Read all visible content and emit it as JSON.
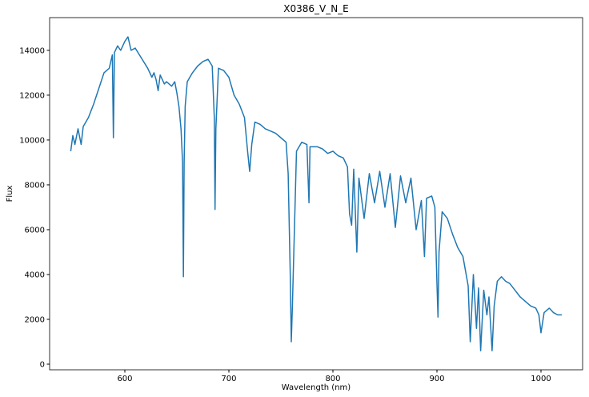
{
  "chart_data": {
    "type": "line",
    "title": "X0386_V_N_E",
    "x_label": "Wavelength (nm)",
    "y_label": "Flux",
    "color": "#1f77b4",
    "x": [
      548,
      550,
      552,
      555,
      558,
      560,
      565,
      570,
      575,
      580,
      585,
      588,
      589,
      590,
      593,
      596,
      600,
      603,
      606,
      610,
      614,
      618,
      622,
      626,
      628,
      630,
      632,
      634,
      638,
      640,
      645,
      648,
      650,
      652,
      654,
      655.5,
      656.3,
      657,
      658,
      660,
      665,
      670,
      675,
      680,
      684,
      686,
      686.7,
      687.5,
      690,
      695,
      700,
      705,
      710,
      715,
      718,
      720,
      722,
      725,
      730,
      735,
      740,
      745,
      750,
      755,
      757,
      759,
      760,
      761,
      763,
      765,
      770,
      775,
      777,
      778,
      785,
      790,
      795,
      800,
      805,
      810,
      814,
      816,
      818,
      820,
      823,
      825,
      830,
      835,
      840,
      845,
      850,
      855,
      860,
      865,
      870,
      875,
      880,
      885,
      888,
      890,
      895,
      898,
      900,
      901,
      902,
      905,
      910,
      915,
      920,
      925,
      930,
      932,
      935,
      938,
      940,
      942,
      945,
      948,
      950,
      953,
      955,
      958,
      962,
      966,
      970,
      975,
      980,
      985,
      990,
      995,
      998,
      1000,
      1003,
      1008,
      1012,
      1016,
      1020
    ],
    "values": [
      9500,
      10200,
      9800,
      10500,
      9800,
      10600,
      11000,
      11600,
      12300,
      13000,
      13200,
      13800,
      10100,
      13900,
      14200,
      14000,
      14400,
      14600,
      14000,
      14100,
      13800,
      13500,
      13200,
      12800,
      13000,
      12700,
      12200,
      12900,
      12500,
      12600,
      12400,
      12600,
      12100,
      11500,
      10500,
      9000,
      3900,
      9000,
      11500,
      12600,
      13000,
      13300,
      13500,
      13600,
      13300,
      11000,
      6900,
      10500,
      13200,
      13100,
      12800,
      12000,
      11600,
      11000,
      9500,
      8600,
      9800,
      10800,
      10700,
      10500,
      10400,
      10300,
      10100,
      9900,
      8500,
      4000,
      1000,
      2500,
      6000,
      9500,
      9900,
      9800,
      7200,
      9700,
      9700,
      9600,
      9400,
      9500,
      9300,
      9200,
      8800,
      6700,
      6200,
      8700,
      5000,
      8300,
      6500,
      8500,
      7200,
      8600,
      7000,
      8500,
      6100,
      8400,
      7200,
      8300,
      6000,
      7300,
      4800,
      7400,
      7500,
      7000,
      3600,
      2100,
      5000,
      6800,
      6500,
      5800,
      5200,
      4800,
      3500,
      1000,
      4000,
      1600,
      3400,
      600,
      3300,
      2200,
      3000,
      600,
      2600,
      3700,
      3900,
      3700,
      3600,
      3300,
      3000,
      2800,
      2600,
      2500,
      2200,
      1400,
      2300,
      2500,
      2300,
      2200,
      2200
    ],
    "xlim": [
      527.7,
      1040
    ],
    "ylim": [
      -250,
      15460
    ],
    "xticks": [
      600,
      700,
      800,
      900,
      1000
    ],
    "yticks": [
      0,
      2000,
      4000,
      6000,
      8000,
      10000,
      12000,
      14000
    ]
  }
}
